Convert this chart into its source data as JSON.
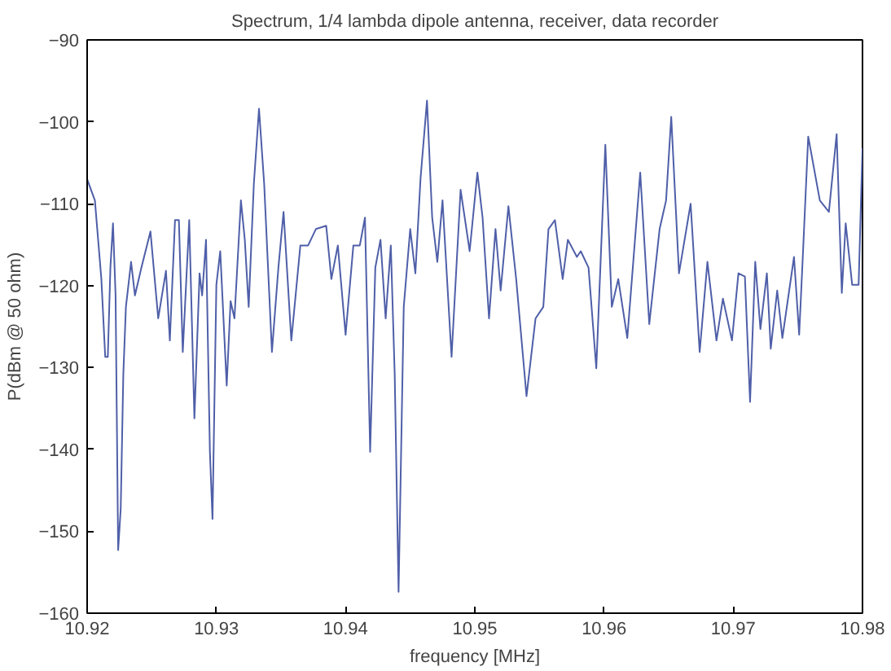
{
  "chart_data": {
    "type": "line",
    "title": "Spectrum, 1/4 lambda dipole antenna, receiver, data recorder",
    "xlabel": "frequency [MHz]",
    "ylabel": "P(dBm @ 50 ohm)",
    "xlim": [
      10.92,
      10.98
    ],
    "ylim": [
      -160,
      -90
    ],
    "xticks": [
      {
        "value": 10.92,
        "label": "10.92"
      },
      {
        "value": 10.93,
        "label": "10.93"
      },
      {
        "value": 10.94,
        "label": "10.94"
      },
      {
        "value": 10.95,
        "label": "10.95"
      },
      {
        "value": 10.96,
        "label": "10.96"
      },
      {
        "value": 10.97,
        "label": "10.97"
      },
      {
        "value": 10.98,
        "label": "10.98"
      }
    ],
    "yticks": [
      -160,
      -150,
      -140,
      -130,
      -120,
      -110,
      -100,
      -90
    ],
    "grid": false,
    "marker": "none",
    "line_style": "solid",
    "series": [
      {
        "color": "#4f5fa8",
        "x": [
          10.92,
          10.9206,
          10.9211,
          10.9214,
          10.9216,
          10.9218,
          10.922,
          10.9222,
          10.9224,
          10.9226,
          10.9228,
          10.923,
          10.9234,
          10.9237,
          10.9242,
          10.9249,
          10.9255,
          10.9261,
          10.9264,
          10.9268,
          10.9271,
          10.9274,
          10.9279,
          10.9283,
          10.9287,
          10.9289,
          10.9292,
          10.9295,
          10.9297,
          10.93,
          10.9303,
          10.9308,
          10.9311,
          10.9314,
          10.9319,
          10.9322,
          10.9325,
          10.9329,
          10.9333,
          10.9337,
          10.9343,
          10.9348,
          10.9352,
          10.9358,
          10.9365,
          10.9371,
          10.9377,
          10.9385,
          10.9389,
          10.9394,
          10.94,
          10.9406,
          10.9411,
          10.9415,
          10.9419,
          10.9423,
          10.9427,
          10.9431,
          10.9435,
          10.9438,
          10.9441,
          10.9445,
          10.945,
          10.9454,
          10.9458,
          10.9463,
          10.9467,
          10.9471,
          10.9475,
          10.9482,
          10.9489,
          10.9496,
          10.9502,
          10.9506,
          10.9511,
          10.9516,
          10.952,
          10.9526,
          10.9532,
          10.954,
          10.9547,
          10.9553,
          10.9557,
          10.9562,
          10.9568,
          10.9572,
          10.9579,
          10.9582,
          10.9588,
          10.9594,
          10.9601,
          10.9606,
          10.9611,
          10.9618,
          10.9628,
          10.9635,
          10.9643,
          10.9648,
          10.9652,
          10.9658,
          10.9667,
          10.9674,
          10.968,
          10.9687,
          10.9692,
          10.9699,
          10.9704,
          10.9709,
          10.9713,
          10.9717,
          10.9721,
          10.9726,
          10.9729,
          10.9734,
          10.9738,
          10.9747,
          10.9751,
          10.9754,
          10.9758,
          10.9767,
          10.9774,
          10.978,
          10.9784,
          10.9787,
          10.9792,
          10.9797,
          10.98
        ],
        "values": [
          -107,
          -109.6,
          -119.2,
          -128.7,
          -128.7,
          -117.8,
          -112.4,
          -121.2,
          -152.3,
          -147.2,
          -130.8,
          -122.6,
          -117.1,
          -121.2,
          -117.8,
          -113.4,
          -124,
          -118.2,
          -126.7,
          -112,
          -112,
          -128.1,
          -112,
          -136.2,
          -118.5,
          -121.2,
          -114.4,
          -140.3,
          -148.5,
          -119.9,
          -115.8,
          -132.2,
          -121.9,
          -124,
          -109.6,
          -114.4,
          -122.6,
          -107.6,
          -98.4,
          -107.6,
          -128.1,
          -117.8,
          -111,
          -126.7,
          -115.1,
          -115.1,
          -113.1,
          -112.7,
          -119.2,
          -115.1,
          -126,
          -115.1,
          -115.1,
          -111.7,
          -140.3,
          -117.8,
          -114.4,
          -124,
          -115.1,
          -130.8,
          -157.4,
          -122.6,
          -113.1,
          -118.5,
          -106.9,
          -97.4,
          -111.7,
          -117.1,
          -109.6,
          -128.7,
          -108.3,
          -115.8,
          -106.2,
          -111.7,
          -124,
          -113.1,
          -120.6,
          -110.3,
          -119.2,
          -133.5,
          -124,
          -122.6,
          -113.1,
          -112,
          -119.2,
          -114.4,
          -116.5,
          -115.8,
          -117.8,
          -130.1,
          -102.8,
          -122.6,
          -119.2,
          -126.4,
          -106.2,
          -124.7,
          -113.1,
          -109.6,
          -99.4,
          -118.5,
          -110,
          -128.1,
          -117.1,
          -126.7,
          -121.6,
          -126.7,
          -118.5,
          -118.9,
          -134.2,
          -117.1,
          -125.3,
          -118.5,
          -127.7,
          -120.6,
          -126.4,
          -116.5,
          -126,
          -115.8,
          -101.8,
          -109.6,
          -111,
          -101.5,
          -120.9,
          -112.4,
          -119.9,
          -119.9,
          -103.2
        ]
      }
    ]
  }
}
